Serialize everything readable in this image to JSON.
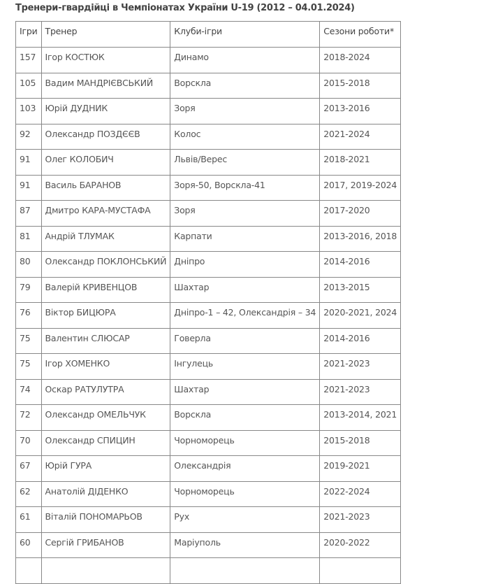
{
  "title": "Тренери-гвардійці в Чемпіонатах України U-19 (2012 – 04.01.2024)",
  "columns": [
    "Ігри",
    "Тренер",
    "Клуби-ігри",
    "Сезони роботи*"
  ],
  "rows": [
    [
      "157",
      "Ігор КОСТЮК",
      "Динамо",
      "2018-2024"
    ],
    [
      "105",
      "Вадим МАНДРІЄВСЬКИЙ",
      "Ворскла",
      "2015-2018"
    ],
    [
      "103",
      "Юрій ДУДНИК",
      "Зоря",
      "2013-2016"
    ],
    [
      "92",
      "Олександр ПОЗДЄЄВ",
      "Колос",
      "2021-2024"
    ],
    [
      "91",
      "Олег КОЛОБИЧ",
      "Львів/Верес",
      "2018-2021"
    ],
    [
      "91",
      "Василь БАРАНОВ",
      "Зоря-50, Ворскла-41",
      "2017, 2019-2024"
    ],
    [
      "87",
      "Дмитро КАРА-МУСТАФА",
      "Зоря",
      "2017-2020"
    ],
    [
      "81",
      "Андрій ТЛУМАК",
      "Карпати",
      "2013-2016, 2018"
    ],
    [
      "80",
      "Олександр ПОКЛОНСЬКИЙ",
      "Дніпро",
      "2014-2016"
    ],
    [
      "79",
      "Валерій КРИВЕНЦОВ",
      "Шахтар",
      "2013-2015"
    ],
    [
      "76",
      "Віктор БИЦЮРА",
      "Дніпро-1 – 42, Олександрія – 34",
      "2020-2021, 2024"
    ],
    [
      "75",
      "Валентин СЛЮСАР",
      "Говерла",
      "2014-2016"
    ],
    [
      "75",
      "Ігор ХОМЕНКО",
      "Інгулець",
      "2021-2023"
    ],
    [
      "74",
      "Оскар РАТУЛУТРА",
      "Шахтар",
      "2021-2023"
    ],
    [
      "72",
      "Олександр ОМЕЛЬЧУК",
      "Ворскла",
      "2013-2014, 2021"
    ],
    [
      "70",
      "Олександр СПИЦИН",
      "Чорноморець",
      "2015-2018"
    ],
    [
      "67",
      "Юрій ГУРА",
      "Олександрія",
      "2019-2021"
    ],
    [
      "62",
      "Анатолій ДІДЕНКО",
      "Чорноморець",
      "2022-2024"
    ],
    [
      "61",
      "Віталій ПОНОМАРЬОВ",
      "Рух",
      "2021-2023"
    ],
    [
      "60",
      "Сергій ГРИБАНОВ",
      "Маріуполь",
      "2020-2022"
    ],
    [
      "",
      "",
      "",
      ""
    ]
  ]
}
